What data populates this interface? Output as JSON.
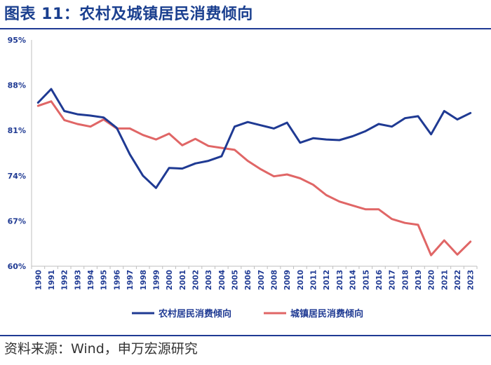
{
  "header": {
    "title": "图表 11：农村及城镇居民消费倾向"
  },
  "footer": {
    "source": "资料来源：Wind，申万宏源研究"
  },
  "colors": {
    "rural": "#1f3a93",
    "urban": "#e06666",
    "title": "#1a3f8f",
    "rule": "#1f3a93"
  },
  "chart_data": {
    "type": "line",
    "title": "",
    "xlabel": "",
    "ylabel": "",
    "ylim": [
      60,
      95
    ],
    "yticks": [
      "60%",
      "67%",
      "74%",
      "81%",
      "88%",
      "95%"
    ],
    "ytick_values": [
      60,
      67,
      74,
      81,
      88,
      95
    ],
    "grid": false,
    "legend_position": "bottom",
    "categories": [
      "1990",
      "1991",
      "1992",
      "1993",
      "1994",
      "1995",
      "1996",
      "1997",
      "1998",
      "1999",
      "2000",
      "2001",
      "2002",
      "2003",
      "2004",
      "2005",
      "2006",
      "2007",
      "2008",
      "2009",
      "2010",
      "2011",
      "2012",
      "2013",
      "2014",
      "2015",
      "2016",
      "2017",
      "2018",
      "2019",
      "2020",
      "2021",
      "2022",
      "2023"
    ],
    "series": [
      {
        "name": "农村居民消费倾向",
        "values": [
          85.3,
          87.4,
          84.0,
          83.5,
          83.3,
          83.0,
          81.4,
          77.3,
          74.0,
          72.1,
          75.2,
          75.1,
          75.9,
          76.3,
          77.0,
          81.6,
          82.3,
          81.8,
          81.3,
          82.2,
          79.1,
          79.8,
          79.6,
          79.5,
          80.1,
          80.9,
          82.0,
          81.6,
          82.9,
          83.2,
          80.4,
          84.0,
          82.7,
          83.7
        ]
      },
      {
        "name": "城镇居民消费倾向",
        "values": [
          84.8,
          85.5,
          82.6,
          82.0,
          81.6,
          82.7,
          81.3,
          81.3,
          80.3,
          79.6,
          80.5,
          78.7,
          79.7,
          78.6,
          78.3,
          78.0,
          76.3,
          75.0,
          73.9,
          74.2,
          73.6,
          72.6,
          71.0,
          70.0,
          69.4,
          68.8,
          68.8,
          67.3,
          66.7,
          66.4,
          61.7,
          64.0,
          61.8,
          63.8
        ]
      }
    ]
  }
}
